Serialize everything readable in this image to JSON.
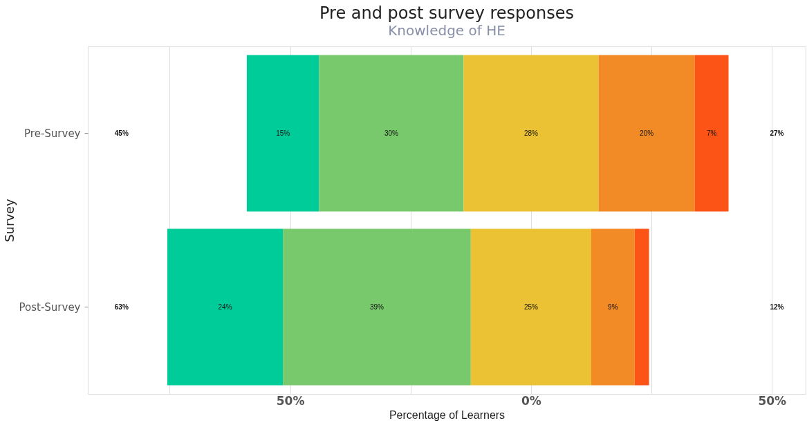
{
  "chart_data": {
    "type": "bar",
    "title": "Pre and post survey responses",
    "subtitle": "Knowledge of HE",
    "xlabel": "Percentage of Learners",
    "ylabel": "Survey",
    "orientation": "horizontal",
    "categories": [
      "Pre-Survey",
      "Post-Survey"
    ],
    "series": [
      {
        "color": "#00cc99",
        "base": [
          -59,
          -75.5
        ],
        "values": [
          15,
          24
        ],
        "value_labels": [
          "15%",
          "24%"
        ]
      },
      {
        "color": "#78c86c",
        "base": [
          -44,
          -51.5
        ],
        "values": [
          30,
          39
        ],
        "value_labels": [
          "30%",
          "39%"
        ]
      },
      {
        "color": "#eac233",
        "base": [
          -14,
          -12.5
        ],
        "values": [
          28,
          25
        ],
        "value_labels": [
          "28%",
          "25%"
        ]
      },
      {
        "color": "#f28a26",
        "base": [
          14,
          12.5
        ],
        "values": [
          20,
          9
        ],
        "value_labels": [
          "20%",
          "9%"
        ]
      },
      {
        "color": "#fc5316",
        "base": [
          34,
          21.5
        ],
        "values": [
          7,
          3
        ],
        "value_labels": [
          "7%",
          null
        ]
      }
    ],
    "xlim": [
      -92,
      57
    ],
    "xticks": [
      {
        "value": -75,
        "label": null
      },
      {
        "value": -50,
        "label": "50%"
      },
      {
        "value": -25,
        "label": null
      },
      {
        "value": 0,
        "label": "0%"
      },
      {
        "value": 25,
        "label": null
      },
      {
        "value": 50,
        "label": "50%"
      }
    ],
    "grid": "x",
    "annotations": [
      "45%",
      "27%",
      "63%",
      "12%"
    ]
  }
}
